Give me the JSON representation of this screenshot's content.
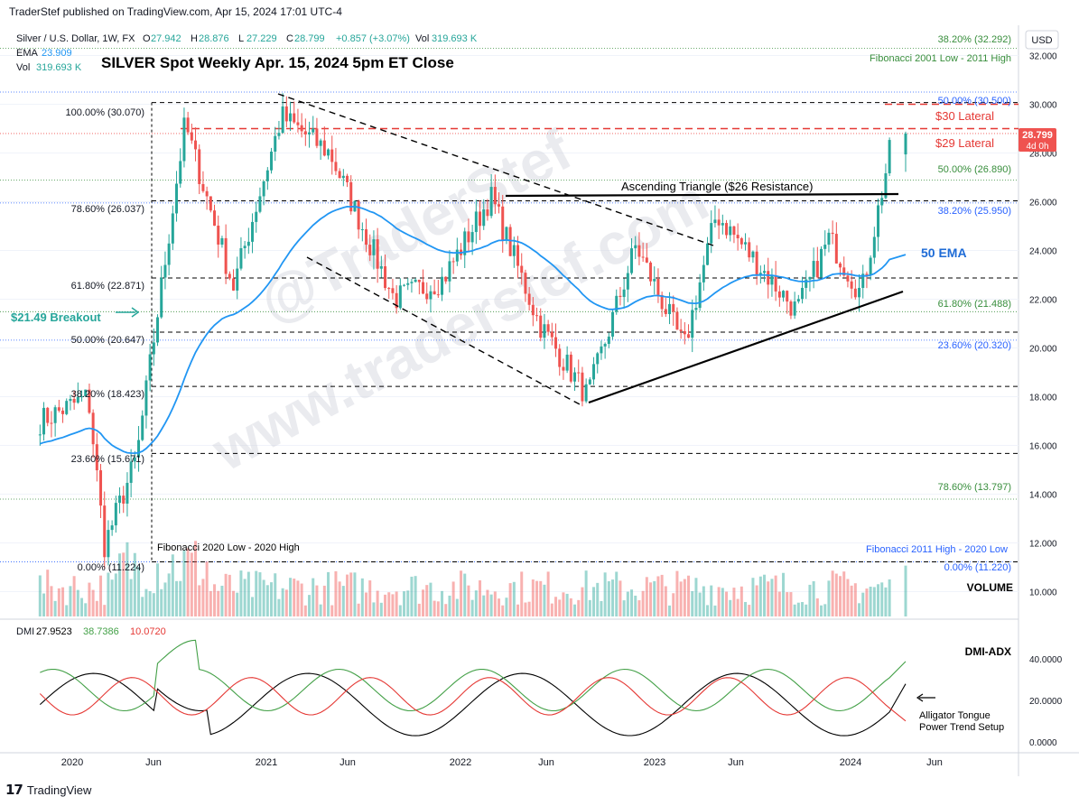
{
  "header": {
    "attribution": "TraderStef published on TradingView.com, Apr 15, 2024 17:01 UTC-4",
    "title": "SILVER Spot Weekly Apr. 15, 2024 5pm ET Close"
  },
  "legend": {
    "symbol": "Silver / U.S. Dollar, 1W, FX",
    "ohlc": [
      {
        "label": "O",
        "value": "27.942"
      },
      {
        "label": "H",
        "value": "28.876"
      },
      {
        "label": "L",
        "value": "27.229"
      },
      {
        "label": "C",
        "value": "28.799"
      }
    ],
    "change": "+0.857 (+3.07%)",
    "vol_label": "Vol",
    "vol_value": "319.693 K",
    "ema_label": "EMA",
    "ema_value": "23.909",
    "vol2_label": "Vol",
    "vol2_value": "319.693 K"
  },
  "price_axis": {
    "currency": "USD",
    "ticks": [
      "32.000",
      "30.000",
      "28.000",
      "26.000",
      "24.000",
      "22.000",
      "20.000",
      "18.000",
      "16.000",
      "14.000",
      "12.000",
      "10.000"
    ],
    "last_price": "28.799",
    "countdown": "4d 0h"
  },
  "time_axis": {
    "ticks": [
      "2020",
      "Jun",
      "2021",
      "Jun",
      "2022",
      "Jun",
      "2023",
      "Jun",
      "2024",
      "Jun"
    ]
  },
  "dmi_panel": {
    "label": "DMI",
    "values": [
      "27.9523",
      "38.7386",
      "10.0720"
    ],
    "ticks": [
      "40.0000",
      "20.0000",
      "0.0000"
    ],
    "title": "DMI-ADX",
    "note_line1": "Alligator Tongue",
    "note_line2": "Power Trend Setup"
  },
  "annotations": {
    "fib_2001_2011": "Fibonacci 2001 Low - 2011 High",
    "fib_2011_2020": "Fibonacci 2011 High - 2020 Low",
    "fib_2020_2020": "Fibonacci 2020 Low - 2020 High",
    "lateral_30": "$30 Lateral",
    "lateral_29": "$29 Lateral",
    "triangle": "Ascending Triangle ($26 Resistance)",
    "ema50": "50 EMA",
    "breakout": "$21.49 Breakout",
    "volume": "VOLUME",
    "watermark1": "@TraderStef",
    "watermark2": "www.traderstef.com"
  },
  "fib_levels_right": [
    {
      "label": "38.20% (32.292)",
      "color": "#388e3c"
    },
    {
      "label": "50.00% (30.500)",
      "color": "#2962ff"
    },
    {
      "label": "50.00% (26.890)",
      "color": "#388e3c"
    },
    {
      "label": "38.20% (25.950)",
      "color": "#2962ff"
    },
    {
      "label": "61.80% (21.488)",
      "color": "#388e3c"
    },
    {
      "label": "23.60% (20.320)",
      "color": "#2962ff"
    },
    {
      "label": "78.60% (13.797)",
      "color": "#388e3c"
    },
    {
      "label": "0.00% (11.220)",
      "color": "#2962ff"
    }
  ],
  "fib_levels_left": [
    {
      "label": "100.00% (30.070)"
    },
    {
      "label": "78.60% (26.037)"
    },
    {
      "label": "61.80% (22.871)"
    },
    {
      "label": "50.00% (20.647)"
    },
    {
      "label": "38.20% (18.423)"
    },
    {
      "label": "23.60% (15.671)"
    },
    {
      "label": "0.00% (11.224)"
    }
  ],
  "colors": {
    "up": "#26a69a",
    "down": "#ef5350",
    "ema": "#2196f3",
    "lateral": "#e53935",
    "fib_green": "#388e3c",
    "fib_blue": "#2962ff",
    "di_plus": "#43a047",
    "di_minus": "#e53935",
    "adx": "#000000"
  },
  "chart_data": {
    "type": "candlestick",
    "title": "SILVER Spot Weekly Apr. 15, 2024 5pm ET Close",
    "ylabel": "USD",
    "ylim": [
      9.0,
      33.0
    ],
    "x_labels": [
      "2020",
      "Jun",
      "2021",
      "Jun",
      "2022",
      "Jun",
      "2023",
      "Jun",
      "2024",
      "Jun"
    ],
    "last": {
      "open": 27.942,
      "high": 28.876,
      "low": 27.229,
      "close": 28.799
    },
    "ema50_last": 23.909,
    "key_points": [
      {
        "date": "2019-11",
        "close": 17.0
      },
      {
        "date": "2020-02",
        "close": 18.0
      },
      {
        "date": "2020-03",
        "close": 11.9
      },
      {
        "date": "2020-05",
        "close": 15.5
      },
      {
        "date": "2020-08",
        "close": 29.2
      },
      {
        "date": "2020-11",
        "close": 22.5
      },
      {
        "date": "2021-02",
        "close": 29.5
      },
      {
        "date": "2021-05",
        "close": 28.0
      },
      {
        "date": "2021-09",
        "close": 22.0
      },
      {
        "date": "2021-12",
        "close": 22.8
      },
      {
        "date": "2022-03",
        "close": 26.2
      },
      {
        "date": "2022-06",
        "close": 21.0
      },
      {
        "date": "2022-09",
        "close": 18.0
      },
      {
        "date": "2022-12",
        "close": 24.2
      },
      {
        "date": "2023-03",
        "close": 20.0
      },
      {
        "date": "2023-05",
        "close": 25.5
      },
      {
        "date": "2023-10",
        "close": 21.5
      },
      {
        "date": "2023-12",
        "close": 24.5
      },
      {
        "date": "2024-02",
        "close": 22.2
      },
      {
        "date": "2024-04",
        "close": 28.799
      }
    ],
    "dmi": {
      "adx": 27.9523,
      "di_plus": 38.7386,
      "di_minus": 10.072,
      "ylim": [
        0,
        50
      ]
    }
  }
}
